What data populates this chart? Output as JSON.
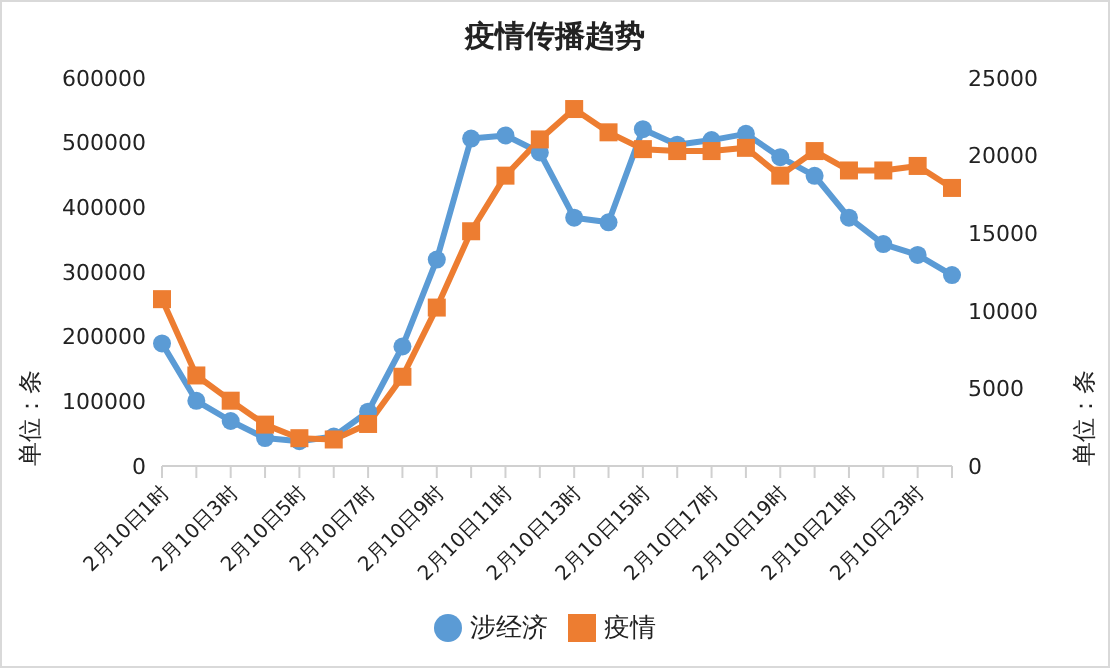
{
  "chart_data": {
    "type": "line",
    "title": "疫情传播趋势",
    "ylabel": "单位：条",
    "y2label": "单位：条",
    "categories": [
      "2月10日1时",
      null,
      "2月10日3时",
      null,
      "2月10日5时",
      null,
      "2月10日7时",
      null,
      "2月10日9时",
      null,
      "2月10日11时",
      null,
      "2月10日13时",
      null,
      "2月10日15时",
      null,
      "2月10日17时",
      null,
      "2月10日19时",
      null,
      "2月10日21时",
      null,
      "2月10日23时",
      null
    ],
    "series": [
      {
        "name": "疫情",
        "color": "#ed7d31",
        "marker": "square",
        "values": [
          258000,
          140000,
          101000,
          64000,
          43000,
          41000,
          65000,
          138000,
          245000,
          363000,
          449000,
          505000,
          552000,
          516000,
          490000,
          487000,
          487000,
          492000,
          449000,
          487000,
          457000,
          457000,
          464000,
          430000
        ]
      },
      {
        "name": "涉经济",
        "color": "#5b9bd5",
        "marker": "circle",
        "axis": "y2",
        "values": [
          7900,
          4200,
          2900,
          1800,
          1600,
          1900,
          3500,
          7700,
          13300,
          21100,
          21300,
          20200,
          16000,
          15700,
          21700,
          20700,
          21000,
          21400,
          19900,
          18700,
          16000,
          14300,
          13600,
          12300
        ]
      }
    ],
    "ylim": [
      0,
      600000
    ],
    "yticks": [
      0,
      100000,
      200000,
      300000,
      400000,
      500000,
      600000
    ],
    "y2lim": [
      0,
      25000
    ],
    "y2ticks": [
      0,
      5000,
      10000,
      15000,
      20000,
      25000
    ],
    "grid": false,
    "legend": "bottom",
    "line_style": "solid"
  }
}
